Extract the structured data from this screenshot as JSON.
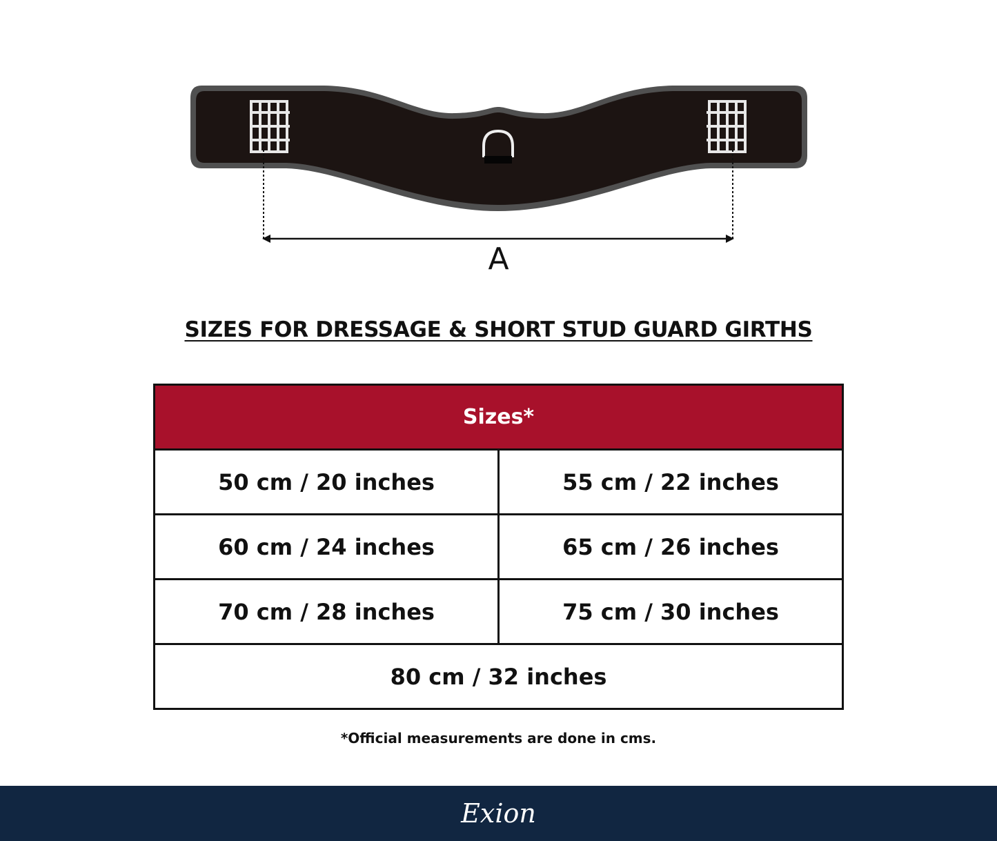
{
  "diagram": {
    "measure_label": "A"
  },
  "title": "SIZES FOR DRESSAGE & SHORT STUD GUARD GIRTHS",
  "table": {
    "header": "Sizes*",
    "rows": [
      [
        "50 cm / 20 inches",
        "55 cm / 22 inches"
      ],
      [
        "60 cm / 24 inches",
        "65 cm / 26 inches"
      ],
      [
        "70 cm / 28 inches",
        "75 cm / 30 inches"
      ],
      [
        "80 cm / 32 inches"
      ]
    ]
  },
  "note": "*Official measurements are done in cms.",
  "footer": {
    "logo": "Exion"
  },
  "colors": {
    "header_bg": "#a8112b",
    "footer_bg": "#112641"
  }
}
